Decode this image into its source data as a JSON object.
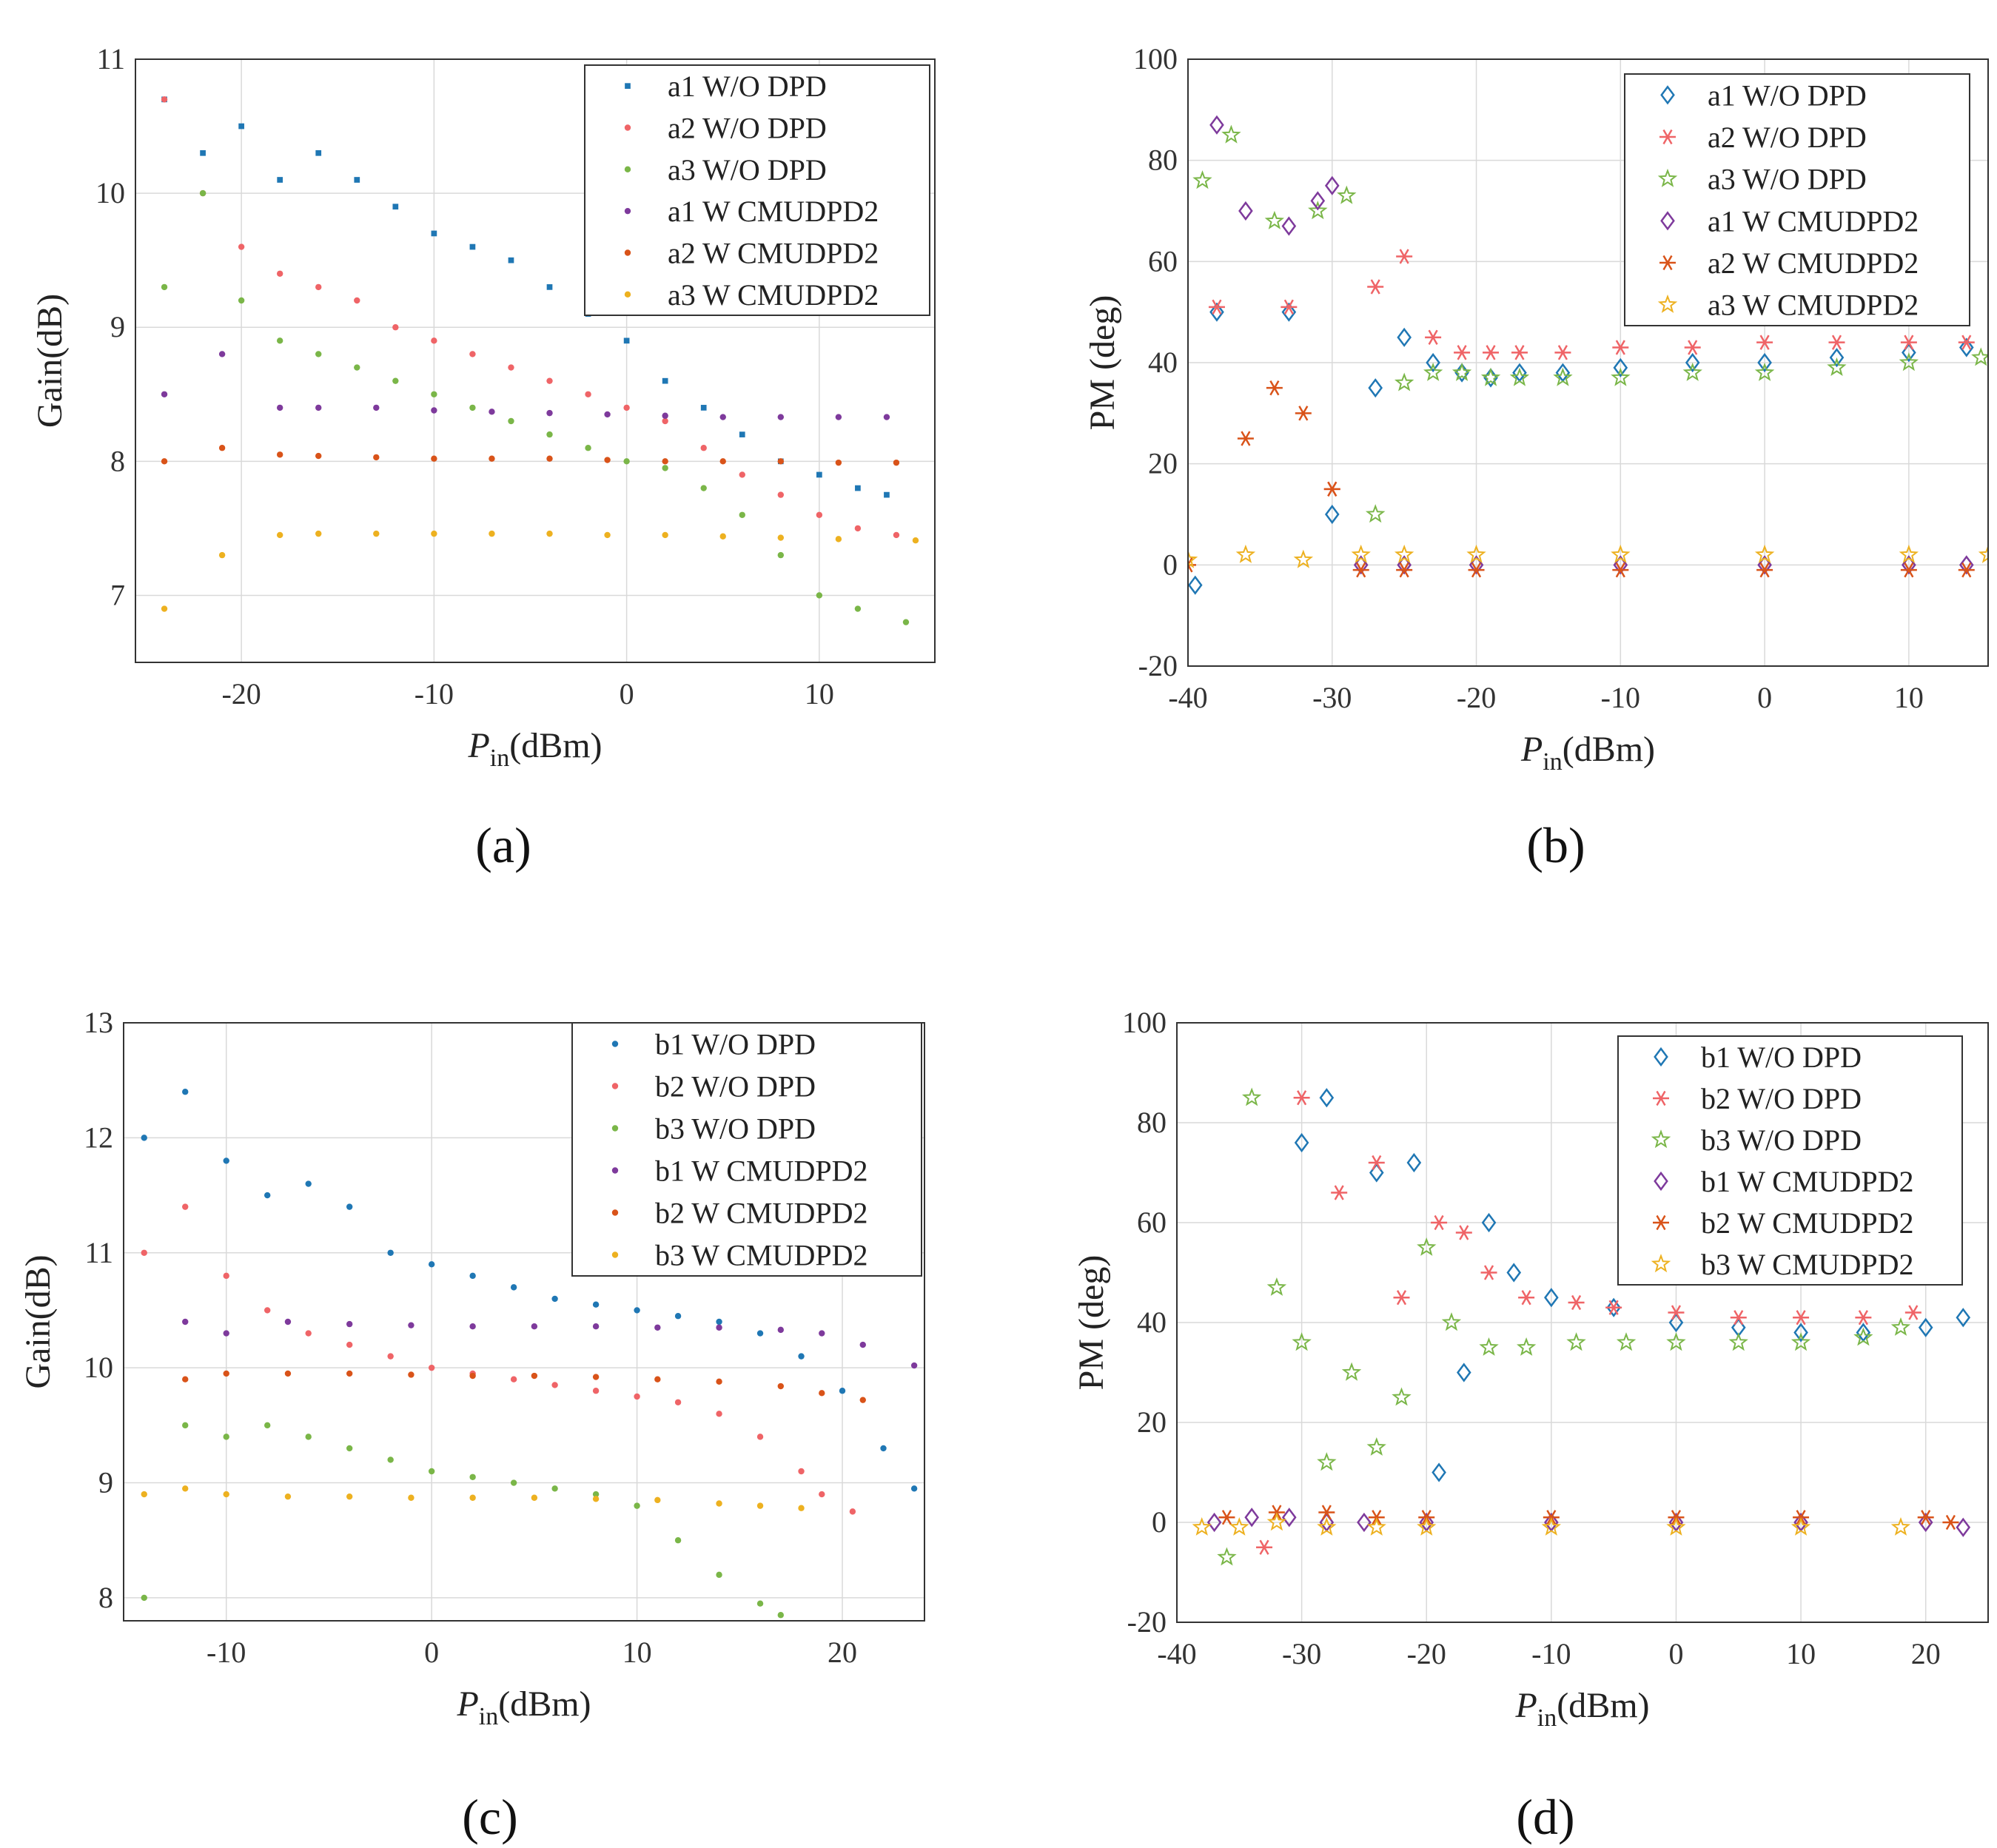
{
  "chart_data": [
    {
      "type": "scatter",
      "panel_label": "(a)",
      "ylabel": "Gain(dB)",
      "xlabel_main": "P",
      "xlabel_sub": "in",
      "xlabel_unit": "(dBm)",
      "xlim": [
        -25.5,
        16
      ],
      "ylim": [
        6.5,
        11
      ],
      "xticks": [
        -20,
        -10,
        0,
        10
      ],
      "yticks": [
        7,
        8,
        9,
        10,
        11
      ],
      "legend_position": "top-right",
      "series": [
        {
          "name": "a1 W/O DPD",
          "color": "#1f77b4",
          "marker": "square",
          "x": [
            -24,
            -22,
            -20,
            -18,
            -16,
            -14,
            -12,
            -10,
            -8,
            -6,
            -4,
            -2,
            0,
            2,
            4,
            6,
            8,
            10,
            12,
            13.5
          ],
          "y": [
            10.7,
            10.3,
            10.5,
            10.1,
            10.3,
            10.1,
            9.9,
            9.7,
            9.6,
            9.5,
            9.3,
            9.1,
            8.9,
            8.6,
            8.4,
            8.2,
            8.0,
            7.9,
            7.8,
            7.75
          ]
        },
        {
          "name": "a2 W/O DPD",
          "color": "#ef6467",
          "marker": "dot",
          "x": [
            -24,
            -22,
            -20,
            -18,
            -16,
            -14,
            -12,
            -10,
            -8,
            -6,
            -4,
            -2,
            0,
            2,
            4,
            6,
            8,
            10,
            12,
            14
          ],
          "y": [
            10.7,
            10.0,
            9.6,
            9.4,
            9.3,
            9.2,
            9.0,
            8.9,
            8.8,
            8.7,
            8.6,
            8.5,
            8.4,
            8.3,
            8.1,
            7.9,
            7.75,
            7.6,
            7.5,
            7.45
          ]
        },
        {
          "name": "a3 W/O DPD",
          "color": "#7ab648",
          "marker": "dot",
          "x": [
            -24,
            -22,
            -20,
            -18,
            -16,
            -14,
            -12,
            -10,
            -8,
            -6,
            -4,
            -2,
            0,
            2,
            4,
            6,
            8,
            10,
            12,
            14.5
          ],
          "y": [
            9.3,
            10.0,
            9.2,
            8.9,
            8.8,
            8.7,
            8.6,
            8.5,
            8.4,
            8.3,
            8.2,
            8.1,
            8.0,
            7.95,
            7.8,
            7.6,
            7.3,
            7.0,
            6.9,
            6.8
          ]
        },
        {
          "name": "a1 W CMUDPD2",
          "color": "#7e3a9c",
          "marker": "dot",
          "x": [
            -24,
            -21,
            -18,
            -16,
            -13,
            -10,
            -7,
            -4,
            -1,
            2,
            5,
            8,
            11,
            13.5
          ],
          "y": [
            8.5,
            8.8,
            8.4,
            8.4,
            8.4,
            8.38,
            8.37,
            8.36,
            8.35,
            8.34,
            8.33,
            8.33,
            8.33,
            8.33
          ]
        },
        {
          "name": "a2 W CMUDPD2",
          "color": "#d95319",
          "marker": "dot",
          "x": [
            -24,
            -21,
            -18,
            -16,
            -13,
            -10,
            -7,
            -4,
            -1,
            2,
            5,
            8,
            11,
            14
          ],
          "y": [
            8.0,
            8.1,
            8.05,
            8.04,
            8.03,
            8.02,
            8.02,
            8.02,
            8.01,
            8.0,
            8.0,
            8.0,
            7.99,
            7.99
          ]
        },
        {
          "name": "a3 W CMUDPD2",
          "color": "#edb120",
          "marker": "dot",
          "x": [
            -24,
            -21,
            -18,
            -16,
            -13,
            -10,
            -7,
            -4,
            -1,
            2,
            5,
            8,
            11,
            15
          ],
          "y": [
            6.9,
            7.3,
            7.45,
            7.46,
            7.46,
            7.46,
            7.46,
            7.46,
            7.45,
            7.45,
            7.44,
            7.43,
            7.42,
            7.41
          ]
        }
      ]
    },
    {
      "type": "scatter",
      "panel_label": "(b)",
      "ylabel": "PM (deg)",
      "xlabel_main": "P",
      "xlabel_sub": "in",
      "xlabel_unit": "(dBm)",
      "xlim": [
        -40,
        15.5
      ],
      "ylim": [
        -20,
        100
      ],
      "xticks": [
        -40,
        -30,
        -20,
        -10,
        0,
        10
      ],
      "yticks": [
        -20,
        0,
        20,
        40,
        60,
        80,
        100
      ],
      "legend_position": "top-right",
      "series": [
        {
          "name": "a1 W/O DPD",
          "color": "#1f77b4",
          "marker": "diamond",
          "x": [
            -39.5,
            -38,
            -33,
            -30,
            -27,
            -25,
            -23,
            -21,
            -19,
            -17,
            -14,
            -10,
            -5,
            0,
            5,
            10,
            14
          ],
          "y": [
            -4,
            50,
            50,
            10,
            35,
            45,
            40,
            38,
            37,
            38,
            38,
            39,
            40,
            40,
            41,
            42,
            43
          ]
        },
        {
          "name": "a2 W/O DPD",
          "color": "#ef6467",
          "marker": "asterisk",
          "x": [
            -38,
            -33,
            -30,
            -27,
            -25,
            -23,
            -21,
            -19,
            -17,
            -14,
            -10,
            -5,
            0,
            5,
            10,
            14
          ],
          "y": [
            51,
            51,
            15,
            55,
            61,
            45,
            42,
            42,
            42,
            42,
            43,
            43,
            44,
            44,
            44,
            44
          ]
        },
        {
          "name": "a3 W/O DPD",
          "color": "#7ab648",
          "marker": "star",
          "x": [
            -39,
            -37,
            -34,
            -31,
            -29,
            -27,
            -25,
            -23,
            -21,
            -19,
            -17,
            -14,
            -10,
            -5,
            0,
            5,
            10,
            15
          ],
          "y": [
            76,
            85,
            68,
            70,
            73,
            10,
            36,
            38,
            38,
            37,
            37,
            37,
            37,
            38,
            38,
            39,
            40,
            41
          ]
        },
        {
          "name": "a1 W CMUDPD2",
          "color": "#7e3a9c",
          "marker": "diamond",
          "x": [
            -38,
            -36,
            -33,
            -31,
            -30,
            -28,
            -25,
            -20,
            -10,
            0,
            10,
            14
          ],
          "y": [
            87,
            70,
            67,
            72,
            75,
            0,
            0,
            0,
            0,
            0,
            0,
            0
          ]
        },
        {
          "name": "a2 W CMUDPD2",
          "color": "#d95319",
          "marker": "asterisk",
          "x": [
            -40,
            -36,
            -34,
            -32,
            -30,
            -28,
            -25,
            -20,
            -10,
            0,
            10,
            14
          ],
          "y": [
            0,
            25,
            35,
            30,
            15,
            -1,
            -1,
            -1,
            -1,
            -1,
            -1,
            -1
          ]
        },
        {
          "name": "a3 W CMUDPD2",
          "color": "#edb120",
          "marker": "star",
          "x": [
            -40,
            -36,
            -32,
            -28,
            -25,
            -20,
            -10,
            0,
            10,
            15.5
          ],
          "y": [
            1,
            2,
            1,
            2,
            2,
            2,
            2,
            2,
            2,
            2
          ]
        }
      ]
    },
    {
      "type": "scatter",
      "panel_label": "(c)",
      "ylabel": "Gain(dB)",
      "xlabel_main": "P",
      "xlabel_sub": "in",
      "xlabel_unit": "(dBm)",
      "xlim": [
        -15,
        24
      ],
      "ylim": [
        7.8,
        13
      ],
      "xticks": [
        -10,
        0,
        10,
        20
      ],
      "yticks": [
        8,
        9,
        10,
        11,
        12,
        13
      ],
      "legend_position": "top-right",
      "series": [
        {
          "name": "b1 W/O DPD",
          "color": "#1f77b4",
          "marker": "dot",
          "x": [
            -14,
            -12,
            -10,
            -8,
            -6,
            -4,
            -2,
            0,
            2,
            4,
            6,
            8,
            10,
            12,
            14,
            16,
            18,
            20,
            22,
            23.5
          ],
          "y": [
            12.0,
            12.4,
            11.8,
            11.5,
            11.6,
            11.4,
            11.0,
            10.9,
            10.8,
            10.7,
            10.6,
            10.55,
            10.5,
            10.45,
            10.4,
            10.3,
            10.1,
            9.8,
            9.3,
            8.95
          ]
        },
        {
          "name": "b2 W/O DPD",
          "color": "#ef6467",
          "marker": "dot",
          "x": [
            -14,
            -12,
            -10,
            -8,
            -6,
            -4,
            -2,
            0,
            2,
            4,
            6,
            8,
            10,
            12,
            14,
            16,
            18,
            19,
            20.5
          ],
          "y": [
            11.0,
            11.4,
            10.8,
            10.5,
            10.3,
            10.2,
            10.1,
            10.0,
            9.95,
            9.9,
            9.85,
            9.8,
            9.75,
            9.7,
            9.6,
            9.4,
            9.1,
            8.9,
            8.75
          ]
        },
        {
          "name": "b3 W/O DPD",
          "color": "#7ab648",
          "marker": "dot",
          "x": [
            -14,
            -12,
            -10,
            -8,
            -6,
            -4,
            -2,
            0,
            2,
            4,
            6,
            8,
            10,
            12,
            14,
            16,
            17
          ],
          "y": [
            8.0,
            9.5,
            9.4,
            9.5,
            9.4,
            9.3,
            9.2,
            9.1,
            9.05,
            9.0,
            8.95,
            8.9,
            8.8,
            8.5,
            8.2,
            7.95,
            7.85
          ]
        },
        {
          "name": "b1 W CMUDPD2",
          "color": "#7e3a9c",
          "marker": "dot",
          "x": [
            -12,
            -10,
            -7,
            -4,
            -1,
            2,
            5,
            8,
            11,
            14,
            17,
            19,
            21,
            23.5
          ],
          "y": [
            10.4,
            10.3,
            10.4,
            10.38,
            10.37,
            10.36,
            10.36,
            10.36,
            10.35,
            10.35,
            10.33,
            10.3,
            10.2,
            10.02
          ]
        },
        {
          "name": "b2 W CMUDPD2",
          "color": "#d95319",
          "marker": "dot",
          "x": [
            -12,
            -10,
            -7,
            -4,
            -1,
            2,
            5,
            8,
            11,
            14,
            17,
            19,
            21
          ],
          "y": [
            9.9,
            9.95,
            9.95,
            9.95,
            9.94,
            9.93,
            9.93,
            9.92,
            9.9,
            9.88,
            9.84,
            9.78,
            9.72
          ]
        },
        {
          "name": "b3 W CMUDPD2",
          "color": "#edb120",
          "marker": "dot",
          "x": [
            -14,
            -12,
            -10,
            -7,
            -4,
            -1,
            2,
            5,
            8,
            11,
            14,
            16,
            18
          ],
          "y": [
            8.9,
            8.95,
            8.9,
            8.88,
            8.88,
            8.87,
            8.87,
            8.87,
            8.86,
            8.85,
            8.82,
            8.8,
            8.78
          ]
        }
      ]
    },
    {
      "type": "scatter",
      "panel_label": "(d)",
      "ylabel": "PM (deg)",
      "xlabel_main": "P",
      "xlabel_sub": "in",
      "xlabel_unit": "(dBm)",
      "xlim": [
        -40,
        25
      ],
      "ylim": [
        -20,
        100
      ],
      "xticks": [
        -40,
        -30,
        -20,
        -10,
        0,
        10,
        20
      ],
      "yticks": [
        -20,
        0,
        20,
        40,
        60,
        80,
        100
      ],
      "legend_position": "top-right",
      "series": [
        {
          "name": "b1 W/O DPD",
          "color": "#1f77b4",
          "marker": "diamond",
          "x": [
            -30,
            -28,
            -24,
            -21,
            -19,
            -17,
            -15,
            -13,
            -10,
            -5,
            0,
            5,
            10,
            15,
            20,
            23
          ],
          "y": [
            76,
            85,
            70,
            72,
            10,
            30,
            60,
            50,
            45,
            43,
            40,
            39,
            38,
            38,
            39,
            41
          ]
        },
        {
          "name": "b2 W/O DPD",
          "color": "#ef6467",
          "marker": "asterisk",
          "x": [
            -33,
            -30,
            -27,
            -24,
            -22,
            -19,
            -17,
            -15,
            -12,
            -8,
            -5,
            0,
            5,
            10,
            15,
            19
          ],
          "y": [
            -5,
            85,
            66,
            72,
            45,
            60,
            58,
            50,
            45,
            44,
            43,
            42,
            41,
            41,
            41,
            42
          ]
        },
        {
          "name": "b3 W/O DPD",
          "color": "#7ab648",
          "marker": "star",
          "x": [
            -36,
            -34,
            -32,
            -30,
            -28,
            -26,
            -24,
            -22,
            -20,
            -18,
            -15,
            -12,
            -8,
            -4,
            0,
            5,
            10,
            15,
            18
          ],
          "y": [
            -7,
            85,
            47,
            36,
            12,
            30,
            15,
            25,
            55,
            40,
            35,
            35,
            36,
            36,
            36,
            36,
            36,
            37,
            39
          ]
        },
        {
          "name": "b1 W CMUDPD2",
          "color": "#7e3a9c",
          "marker": "diamond",
          "x": [
            -37,
            -34,
            -31,
            -28,
            -25,
            -20,
            -10,
            0,
            10,
            20,
            23
          ],
          "y": [
            0,
            1,
            1,
            0,
            0,
            0,
            0,
            0,
            0,
            0,
            -1
          ]
        },
        {
          "name": "b2 W CMUDPD2",
          "color": "#d95319",
          "marker": "asterisk",
          "x": [
            -36,
            -32,
            -28,
            -24,
            -20,
            -10,
            0,
            10,
            20,
            22
          ],
          "y": [
            1,
            2,
            2,
            1,
            1,
            1,
            1,
            1,
            1,
            0
          ]
        },
        {
          "name": "b3 W CMUDPD2",
          "color": "#edb120",
          "marker": "star",
          "x": [
            -38,
            -35,
            -32,
            -28,
            -24,
            -20,
            -10,
            0,
            10,
            18
          ],
          "y": [
            -1,
            -1,
            0,
            -1,
            -1,
            -1,
            -1,
            -1,
            -1,
            -1
          ]
        }
      ]
    }
  ]
}
